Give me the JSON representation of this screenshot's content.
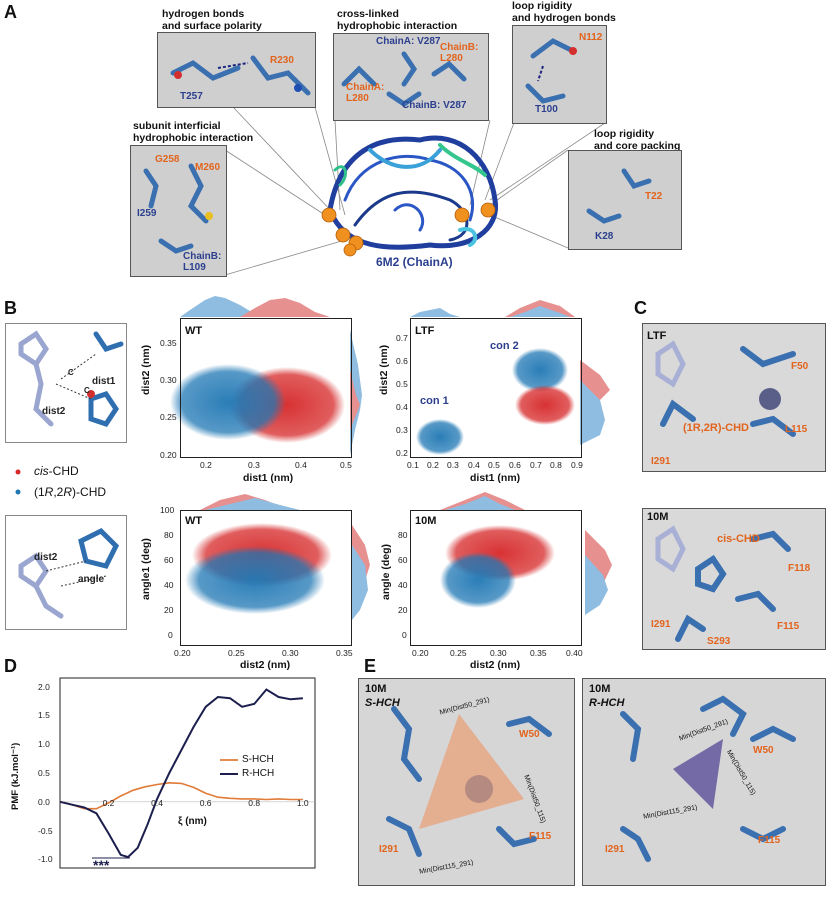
{
  "panels": {
    "A": "A",
    "B": "B",
    "C": "C",
    "D": "D",
    "E": "E"
  },
  "panelA": {
    "protein_label": "6M2 (ChainA)",
    "boxes": [
      {
        "caption": "hydrogen bonds\nand surface polarity",
        "labels": [
          {
            "t": "R230",
            "c": "o"
          },
          {
            "t": "T257",
            "c": "b"
          }
        ]
      },
      {
        "caption": "cross-linked\nhydrophobic interaction",
        "labels": [
          {
            "t": "ChainA: V287",
            "c": "b"
          },
          {
            "t": "ChainB:\nL280",
            "c": "o"
          },
          {
            "t": "ChainA:\nL280",
            "c": "o"
          },
          {
            "t": "ChainB: V287",
            "c": "b"
          }
        ]
      },
      {
        "caption": "loop rigidity\nand hydrogen bonds",
        "labels": [
          {
            "t": "N112",
            "c": "o"
          },
          {
            "t": "T100",
            "c": "b"
          }
        ]
      },
      {
        "caption": "subunit interficial\nhydrophobic interaction",
        "labels": [
          {
            "t": "G258",
            "c": "o"
          },
          {
            "t": "M260",
            "c": "o"
          },
          {
            "t": "I259",
            "c": "b"
          },
          {
            "t": "ChainB:\nL109",
            "c": "b"
          }
        ]
      },
      {
        "caption": "loop rigidity\nand core packing",
        "labels": [
          {
            "t": "T22",
            "c": "o"
          },
          {
            "t": "K28",
            "c": "b"
          }
        ]
      }
    ]
  },
  "panelB": {
    "legend": [
      {
        "name": "cis-CHD",
        "prefix": "",
        "italic": "cis",
        "suffix": "-CHD",
        "color": "#d62728"
      },
      {
        "name": "(1R,2R)-CHD",
        "prefix": "(1",
        "italic": "R",
        "mid": ",2",
        "italic2": "R",
        "suffix": ")-CHD",
        "color": "#1f77b4"
      }
    ],
    "diagram_labels": {
      "top": [
        "dist1",
        "dist2",
        "C",
        "C"
      ],
      "bottom": [
        "dist2",
        "angle"
      ]
    },
    "scatter": [
      {
        "inset": "WT",
        "xlabel": "dist1 (nm)",
        "ylabel": "dist2 (nm)",
        "xticks": [
          "0.2",
          "0.3",
          "0.4",
          "0.5"
        ],
        "yticks": [
          "0.35",
          "0.30",
          "0.25",
          "0.20"
        ]
      },
      {
        "inset": "LTF",
        "xlabel": "dist1 (nm)",
        "ylabel": "dist2 (nm)",
        "xticks": [
          "0.1",
          "0.2",
          "0.3",
          "0.4",
          "0.5",
          "0.6",
          "0.7",
          "0.8",
          "0.9"
        ],
        "yticks": [
          "0.7",
          "0.6",
          "0.5",
          "0.4",
          "0.3",
          "0.2"
        ],
        "annotations": [
          "con 1",
          "con 2"
        ]
      },
      {
        "inset": "WT",
        "xlabel": "dist2 (nm)",
        "ylabel": "angle1 (deg)",
        "xticks": [
          "0.20",
          "0.25",
          "0.30",
          "0.35"
        ],
        "yticks": [
          "100",
          "80",
          "60",
          "40",
          "20",
          "0"
        ]
      },
      {
        "inset": "10M",
        "xlabel": "dist2 (nm)",
        "ylabel": "angle (deg)",
        "xticks": [
          "0.20",
          "0.25",
          "0.30",
          "0.35",
          "0.40"
        ],
        "yticks": [
          "80",
          "60",
          "40",
          "20",
          "0"
        ]
      }
    ]
  },
  "panelC": [
    {
      "inset": "LTF",
      "labels": [
        {
          "t": "F50",
          "c": "o"
        },
        {
          "t": "(1R,2R)-CHD",
          "c": "o"
        },
        {
          "t": "L115",
          "c": "o"
        },
        {
          "t": "I291",
          "c": "o"
        }
      ]
    },
    {
      "inset": "10M",
      "labels": [
        {
          "t": "cis-CHD",
          "c": "o"
        },
        {
          "t": "F118",
          "c": "o"
        },
        {
          "t": "I291",
          "c": "o"
        },
        {
          "t": "F115",
          "c": "o"
        },
        {
          "t": "S293",
          "c": "o"
        }
      ]
    }
  ],
  "chart_data": {
    "type": "line",
    "xlabel": "ξ (nm)",
    "ylabel": "PMF (kJ.mol⁻¹)",
    "xticks": [
      "0.2",
      "0.4",
      "0.6",
      "0.8",
      "1.0"
    ],
    "yticks": [
      "2.0",
      "1.5",
      "1.0",
      "0.5",
      "0.0",
      "-0.5",
      "-1.0"
    ],
    "xlim": [
      0.0,
      1.05
    ],
    "ylim": [
      -1.15,
      2.15
    ],
    "annotation": "***",
    "series": [
      {
        "name": "S-HCH",
        "color": "#e07b39",
        "x": [
          0.0,
          0.05,
          0.1,
          0.15,
          0.2,
          0.25,
          0.3,
          0.35,
          0.4,
          0.45,
          0.5,
          0.55,
          0.6,
          0.65,
          0.7,
          0.75,
          0.8,
          0.85,
          0.9,
          0.95,
          1.0
        ],
        "y": [
          0.0,
          -0.05,
          -0.12,
          -0.12,
          -0.02,
          0.1,
          0.2,
          0.26,
          0.3,
          0.33,
          0.32,
          0.25,
          0.15,
          0.08,
          0.06,
          0.05,
          0.05,
          0.04,
          0.05,
          0.04,
          0.04
        ]
      },
      {
        "name": "R-HCH",
        "color": "#1c1f4d",
        "x": [
          0.0,
          0.05,
          0.1,
          0.15,
          0.2,
          0.25,
          0.28,
          0.32,
          0.36,
          0.4,
          0.45,
          0.5,
          0.55,
          0.6,
          0.65,
          0.7,
          0.75,
          0.8,
          0.85,
          0.9,
          0.95,
          1.0
        ],
        "y": [
          0.0,
          -0.05,
          -0.1,
          -0.2,
          -0.55,
          -0.92,
          -0.96,
          -0.8,
          -0.4,
          0.05,
          0.5,
          0.9,
          1.3,
          1.65,
          1.82,
          1.8,
          1.65,
          1.7,
          1.95,
          1.82,
          1.78,
          1.8
        ]
      }
    ]
  },
  "panelE": [
    {
      "inset": "10M",
      "sub": "S-HCH",
      "labels": [
        {
          "t": "W50",
          "c": "o"
        },
        {
          "t": "F115",
          "c": "o"
        },
        {
          "t": "I291",
          "c": "o"
        }
      ],
      "dist_labels": [
        "Min(Dist50_291)",
        "Min(Dist50_115)",
        "Min(Dist115_291)"
      ]
    },
    {
      "inset": "10M",
      "sub": "R-HCH",
      "labels": [
        {
          "t": "W50",
          "c": "o"
        },
        {
          "t": "F115",
          "c": "o"
        },
        {
          "t": "I291",
          "c": "o"
        }
      ],
      "dist_labels": [
        "Min(Dist50_291)",
        "Min(Dist50_115)",
        "Min(Dist115_291)"
      ]
    }
  ]
}
